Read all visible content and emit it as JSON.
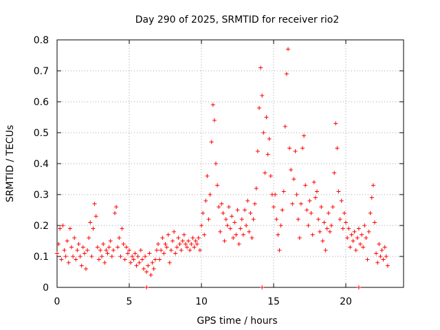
{
  "chart_data": {
    "type": "scatter",
    "title": "Day 290 of 2025, SRMTID for receiver rio2",
    "xlabel": "GPS time / hours",
    "ylabel": "SRMTID / TECUs",
    "xlim": [
      0,
      24
    ],
    "ylim": [
      0,
      0.8
    ],
    "xticks": [
      0,
      5,
      10,
      15,
      20
    ],
    "yticks": [
      0,
      0.1,
      0.2,
      0.3,
      0.4,
      0.5,
      0.6,
      0.7,
      0.8
    ],
    "xtick_labels": [
      "0",
      "5",
      "10",
      "15",
      "20"
    ],
    "ytick_labels": [
      "0",
      "0.1",
      "0.2",
      "0.3",
      "0.4",
      "0.5",
      "0.6",
      "0.7",
      "0.8"
    ],
    "grid": true,
    "marker": "+",
    "color": "#ff0000",
    "series": [
      {
        "name": "SRMTID",
        "points": [
          [
            0.0,
            0.11
          ],
          [
            0.1,
            0.14
          ],
          [
            0.2,
            0.19
          ],
          [
            0.3,
            0.09
          ],
          [
            0.4,
            0.2
          ],
          [
            0.5,
            0.12
          ],
          [
            0.6,
            0.1
          ],
          [
            0.7,
            0.15
          ],
          [
            0.8,
            0.08
          ],
          [
            0.9,
            0.19
          ],
          [
            1.0,
            0.13
          ],
          [
            1.1,
            0.1
          ],
          [
            1.2,
            0.16
          ],
          [
            1.3,
            0.09
          ],
          [
            1.4,
            0.12
          ],
          [
            1.5,
            0.14
          ],
          [
            1.6,
            0.1
          ],
          [
            1.7,
            0.07
          ],
          [
            1.8,
            0.13
          ],
          [
            1.9,
            0.11
          ],
          [
            2.0,
            0.06
          ],
          [
            2.1,
            0.12
          ],
          [
            2.2,
            0.16
          ],
          [
            2.3,
            0.21
          ],
          [
            2.4,
            0.1
          ],
          [
            2.5,
            0.19
          ],
          [
            2.6,
            0.27
          ],
          [
            2.7,
            0.23
          ],
          [
            2.8,
            0.13
          ],
          [
            2.9,
            0.09
          ],
          [
            3.0,
            0.12
          ],
          [
            3.1,
            0.1
          ],
          [
            3.2,
            0.14
          ],
          [
            3.3,
            0.08
          ],
          [
            3.4,
            0.12
          ],
          [
            3.5,
            0.11
          ],
          [
            3.6,
            0.13
          ],
          [
            3.7,
            0.15
          ],
          [
            3.8,
            0.1
          ],
          [
            3.9,
            0.12
          ],
          [
            4.0,
            0.24
          ],
          [
            4.1,
            0.26
          ],
          [
            4.2,
            0.13
          ],
          [
            4.3,
            0.16
          ],
          [
            4.4,
            0.1
          ],
          [
            4.5,
            0.19
          ],
          [
            4.6,
            0.14
          ],
          [
            4.7,
            0.09
          ],
          [
            4.8,
            0.13
          ],
          [
            4.9,
            0.11
          ],
          [
            5.0,
            0.12
          ],
          [
            5.1,
            0.08
          ],
          [
            5.2,
            0.1
          ],
          [
            5.3,
            0.09
          ],
          [
            5.4,
            0.11
          ],
          [
            5.5,
            0.07
          ],
          [
            5.6,
            0.1
          ],
          [
            5.7,
            0.08
          ],
          [
            5.8,
            0.12
          ],
          [
            5.9,
            0.09
          ],
          [
            6.0,
            0.06
          ],
          [
            6.1,
            0.1
          ],
          [
            6.2,
            0.05
          ],
          [
            6.3,
            0.07
          ],
          [
            6.4,
            0.11
          ],
          [
            6.5,
            0.04
          ],
          [
            6.6,
            0.08
          ],
          [
            6.7,
            0.06
          ],
          [
            6.8,
            0.09
          ],
          [
            6.9,
            0.12
          ],
          [
            7.0,
            0.14
          ],
          [
            7.1,
            0.09
          ],
          [
            7.2,
            0.12
          ],
          [
            7.3,
            0.16
          ],
          [
            7.4,
            0.11
          ],
          [
            7.5,
            0.14
          ],
          [
            7.6,
            0.13
          ],
          [
            7.7,
            0.17
          ],
          [
            7.8,
            0.08
          ],
          [
            7.9,
            0.12
          ],
          [
            8.0,
            0.15
          ],
          [
            8.1,
            0.18
          ],
          [
            8.2,
            0.11
          ],
          [
            8.3,
            0.13
          ],
          [
            8.4,
            0.16
          ],
          [
            8.5,
            0.14
          ],
          [
            8.6,
            0.12
          ],
          [
            8.7,
            0.15
          ],
          [
            8.8,
            0.17
          ],
          [
            8.9,
            0.14
          ],
          [
            9.0,
            0.13
          ],
          [
            9.1,
            0.15
          ],
          [
            9.2,
            0.12
          ],
          [
            9.3,
            0.14
          ],
          [
            9.4,
            0.16
          ],
          [
            9.5,
            0.13
          ],
          [
            9.6,
            0.15
          ],
          [
            9.7,
            0.14
          ],
          [
            9.8,
            0.16
          ],
          [
            9.9,
            0.12
          ],
          [
            10.0,
            0.2
          ],
          [
            10.1,
            0.24
          ],
          [
            10.2,
            0.17
          ],
          [
            10.3,
            0.28
          ],
          [
            10.4,
            0.36
          ],
          [
            10.5,
            0.22
          ],
          [
            10.6,
            0.3
          ],
          [
            10.7,
            0.47
          ],
          [
            10.8,
            0.59
          ],
          [
            10.9,
            0.54
          ],
          [
            11.0,
            0.4
          ],
          [
            11.1,
            0.33
          ],
          [
            11.2,
            0.26
          ],
          [
            11.3,
            0.18
          ],
          [
            11.4,
            0.27
          ],
          [
            11.5,
            0.24
          ],
          [
            11.6,
            0.15
          ],
          [
            11.7,
            0.22
          ],
          [
            11.8,
            0.2
          ],
          [
            11.9,
            0.26
          ],
          [
            12.0,
            0.19
          ],
          [
            12.1,
            0.23
          ],
          [
            12.2,
            0.16
          ],
          [
            12.3,
            0.21
          ],
          [
            12.4,
            0.17
          ],
          [
            12.5,
            0.25
          ],
          [
            12.6,
            0.14
          ],
          [
            12.7,
            0.19
          ],
          [
            12.8,
            0.22
          ],
          [
            12.9,
            0.17
          ],
          [
            13.0,
            0.25
          ],
          [
            13.1,
            0.2
          ],
          [
            13.2,
            0.28
          ],
          [
            13.3,
            0.18
          ],
          [
            13.4,
            0.24
          ],
          [
            13.5,
            0.16
          ],
          [
            13.6,
            0.22
          ],
          [
            13.7,
            0.27
          ],
          [
            13.8,
            0.32
          ],
          [
            13.9,
            0.44
          ],
          [
            14.0,
            0.58
          ],
          [
            14.1,
            0.71
          ],
          [
            14.2,
            0.62
          ],
          [
            14.3,
            0.5
          ],
          [
            14.4,
            0.37
          ],
          [
            14.5,
            0.55
          ],
          [
            14.6,
            0.43
          ],
          [
            14.7,
            0.48
          ],
          [
            14.8,
            0.36
          ],
          [
            14.9,
            0.3
          ],
          [
            15.0,
            0.26
          ],
          [
            15.1,
            0.3
          ],
          [
            15.2,
            0.22
          ],
          [
            15.3,
            0.17
          ],
          [
            15.4,
            0.12
          ],
          [
            15.5,
            0.2
          ],
          [
            15.6,
            0.25
          ],
          [
            15.7,
            0.31
          ],
          [
            15.8,
            0.52
          ],
          [
            15.9,
            0.69
          ],
          [
            16.0,
            0.77
          ],
          [
            16.1,
            0.45
          ],
          [
            16.2,
            0.38
          ],
          [
            16.3,
            0.27
          ],
          [
            16.4,
            0.35
          ],
          [
            16.5,
            0.44
          ],
          [
            16.6,
            0.3
          ],
          [
            16.7,
            0.22
          ],
          [
            16.8,
            0.16
          ],
          [
            16.9,
            0.27
          ],
          [
            17.0,
            0.45
          ],
          [
            17.1,
            0.49
          ],
          [
            17.2,
            0.33
          ],
          [
            17.3,
            0.25
          ],
          [
            17.4,
            0.2
          ],
          [
            17.5,
            0.28
          ],
          [
            17.6,
            0.24
          ],
          [
            17.7,
            0.17
          ],
          [
            17.8,
            0.34
          ],
          [
            17.9,
            0.29
          ],
          [
            18.0,
            0.31
          ],
          [
            18.1,
            0.22
          ],
          [
            18.2,
            0.18
          ],
          [
            18.3,
            0.26
          ],
          [
            18.4,
            0.15
          ],
          [
            18.5,
            0.21
          ],
          [
            18.6,
            0.12
          ],
          [
            18.7,
            0.19
          ],
          [
            18.8,
            0.24
          ],
          [
            18.9,
            0.18
          ],
          [
            19.0,
            0.2
          ],
          [
            19.1,
            0.26
          ],
          [
            19.2,
            0.37
          ],
          [
            19.3,
            0.53
          ],
          [
            19.4,
            0.45
          ],
          [
            19.5,
            0.31
          ],
          [
            19.6,
            0.22
          ],
          [
            19.7,
            0.28
          ],
          [
            19.8,
            0.19
          ],
          [
            19.9,
            0.24
          ],
          [
            20.0,
            0.21
          ],
          [
            20.1,
            0.16
          ],
          [
            20.2,
            0.19
          ],
          [
            20.3,
            0.13
          ],
          [
            20.4,
            0.17
          ],
          [
            20.5,
            0.15
          ],
          [
            20.6,
            0.18
          ],
          [
            20.7,
            0.12
          ],
          [
            20.8,
            0.16
          ],
          [
            20.9,
            0.19
          ],
          [
            21.0,
            0.14
          ],
          [
            21.1,
            0.17
          ],
          [
            21.2,
            0.13
          ],
          [
            21.3,
            0.2
          ],
          [
            21.4,
            0.16
          ],
          [
            21.5,
            0.09
          ],
          [
            21.6,
            0.18
          ],
          [
            21.7,
            0.24
          ],
          [
            21.8,
            0.29
          ],
          [
            21.9,
            0.33
          ],
          [
            22.0,
            0.21
          ],
          [
            22.1,
            0.11
          ],
          [
            22.2,
            0.08
          ],
          [
            22.3,
            0.14
          ],
          [
            22.4,
            0.1
          ],
          [
            22.5,
            0.12
          ],
          [
            22.6,
            0.09
          ],
          [
            22.7,
            0.13
          ],
          [
            22.8,
            0.1
          ],
          [
            22.9,
            0.07
          ],
          [
            6.2,
            0.0
          ],
          [
            14.2,
            0.0
          ],
          [
            20.9,
            0.0
          ]
        ]
      }
    ]
  }
}
